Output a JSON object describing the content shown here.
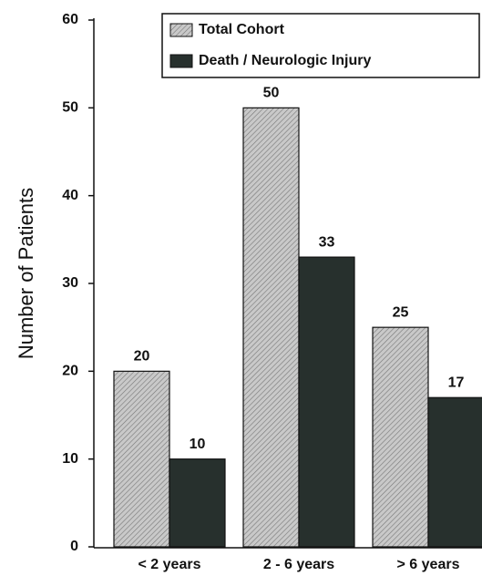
{
  "chart_data": {
    "type": "bar",
    "y_label": "Number of Patients",
    "categories": [
      "< 2 years",
      "2 - 6 years",
      "> 6 years"
    ],
    "series": [
      {
        "name": "Total Cohort",
        "color": "#c9c9c9",
        "values": [
          20,
          50,
          25
        ]
      },
      {
        "name": "Death / Neurologic Injury",
        "color": "#27302d",
        "values": [
          10,
          33,
          17
        ]
      }
    ],
    "ylim": [
      0,
      60
    ],
    "yticks": [
      0,
      10,
      20,
      30,
      40,
      50,
      60
    ],
    "legend": "top-right",
    "hatch": [
      true,
      false
    ]
  }
}
